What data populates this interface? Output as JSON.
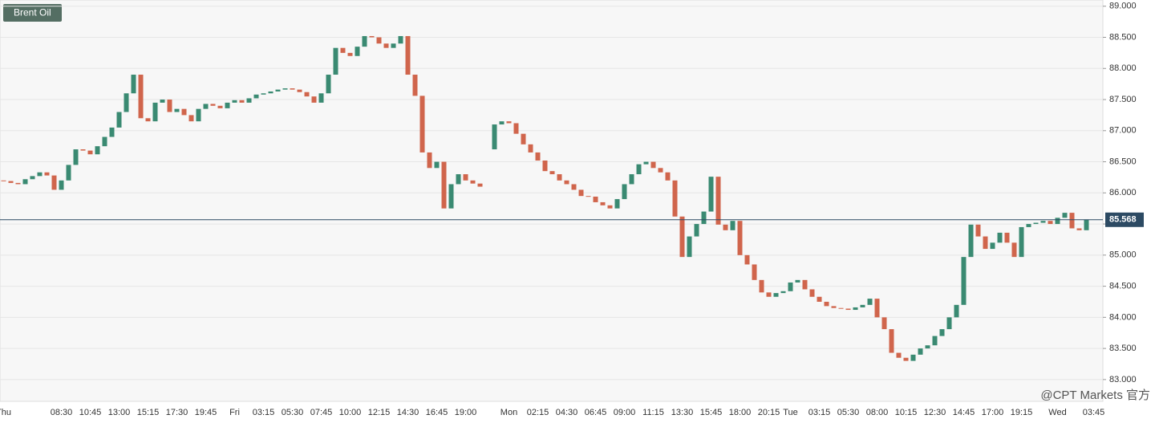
{
  "chart_data": {
    "type": "candlestick",
    "title": "Brent Oil",
    "watermark": "@CPT Markets 官方",
    "categories": [
      "Thu",
      null,
      null,
      null,
      null,
      null,
      null,
      null,
      "08:30",
      null,
      null,
      null,
      "10:45",
      null,
      null,
      null,
      "13:00",
      null,
      null,
      null,
      "15:15",
      null,
      null,
      null,
      "17:30",
      null,
      null,
      null,
      "19:45",
      null,
      null,
      null,
      "Fri",
      null,
      null,
      null,
      "03:15",
      null,
      null,
      null,
      "05:30",
      null,
      null,
      null,
      "07:45",
      null,
      null,
      null,
      "10:00",
      null,
      null,
      null,
      "12:15",
      null,
      null,
      null,
      "14:30",
      null,
      null,
      null,
      "16:45",
      null,
      null,
      null,
      "19:00",
      null,
      null,
      null,
      null,
      null,
      "Mon",
      null,
      null,
      null,
      "02:15",
      null,
      null,
      null,
      "04:30",
      null,
      null,
      null,
      "06:45",
      null,
      null,
      null,
      "09:00",
      null,
      null,
      null,
      "11:15",
      null,
      null,
      null,
      "13:30",
      null,
      null,
      null,
      "15:45",
      null,
      null,
      null,
      "18:00",
      null,
      null,
      null,
      "20:15",
      null,
      null,
      "Tue",
      null,
      null,
      null,
      "03:15",
      null,
      null,
      null,
      "05:30",
      null,
      null,
      null,
      "08:00",
      null,
      null,
      null,
      "10:15",
      null,
      null,
      null,
      "12:30",
      null,
      null,
      null,
      "14:45",
      null,
      null,
      null,
      "17:00",
      null,
      null,
      null,
      "19:15",
      null,
      null,
      null,
      null,
      "Wed",
      null,
      null,
      null,
      null,
      "03:45"
    ],
    "open": [
      86.2,
      86.19,
      86.16,
      86.14,
      86.22,
      86.27,
      86.33,
      86.28,
      86.05,
      86.2,
      86.45,
      86.7,
      86.68,
      86.62,
      86.75,
      86.9,
      87.05,
      87.3,
      87.6,
      87.9,
      87.2,
      87.15,
      87.45,
      87.5,
      87.3,
      87.35,
      87.25,
      87.15,
      87.35,
      87.43,
      87.4,
      87.36,
      87.45,
      87.49,
      87.45,
      87.52,
      87.58,
      87.6,
      87.63,
      87.66,
      87.68,
      87.66,
      87.62,
      87.55,
      87.45,
      87.6,
      87.9,
      88.33,
      88.25,
      88.2,
      88.35,
      88.52,
      88.5,
      88.4,
      88.33,
      88.4,
      88.52,
      87.9,
      87.56,
      86.65,
      86.4,
      86.5,
      85.75,
      86.14,
      86.3,
      86.2,
      86.15,
      null,
      86.7,
      87.1,
      87.15,
      87.12,
      86.95,
      86.78,
      86.65,
      86.52,
      86.35,
      86.3,
      86.2,
      86.14,
      86.05,
      85.95,
      85.94,
      85.85,
      85.8,
      85.75,
      85.9,
      86.14,
      86.3,
      86.46,
      86.5,
      86.4,
      86.33,
      86.2,
      85.62,
      84.97,
      85.3,
      85.5,
      85.7,
      86.26,
      85.49,
      85.4,
      85.55,
      85.0,
      84.85,
      84.6,
      84.4,
      84.33,
      84.39,
      84.42,
      84.56,
      84.6,
      84.45,
      84.33,
      84.25,
      84.18,
      84.15,
      84.14,
      84.12,
      84.16,
      84.2,
      84.3,
      84.0,
      83.81,
      83.43,
      83.35,
      83.3,
      83.4,
      83.5,
      83.55,
      83.7,
      83.81,
      84.0,
      84.2,
      84.97,
      85.49,
      85.3,
      85.1,
      85.2,
      85.36,
      85.2,
      84.97,
      85.45,
      85.5,
      85.52,
      85.55,
      85.5,
      85.6,
      85.68,
      85.43,
      85.4,
      null
    ],
    "close": [
      86.19,
      86.16,
      86.14,
      86.22,
      86.27,
      86.33,
      86.28,
      86.05,
      86.2,
      86.45,
      86.7,
      86.68,
      86.62,
      86.75,
      86.9,
      87.05,
      87.3,
      87.6,
      87.9,
      87.2,
      87.15,
      87.45,
      87.5,
      87.3,
      87.35,
      87.25,
      87.15,
      87.35,
      87.43,
      87.4,
      87.36,
      87.45,
      87.49,
      87.45,
      87.52,
      87.58,
      87.6,
      87.63,
      87.66,
      87.68,
      87.66,
      87.62,
      87.55,
      87.45,
      87.6,
      87.9,
      88.33,
      88.25,
      88.2,
      88.35,
      88.52,
      88.5,
      88.4,
      88.33,
      88.4,
      88.52,
      87.9,
      87.56,
      86.65,
      86.4,
      86.5,
      85.75,
      86.14,
      86.3,
      86.2,
      86.15,
      86.1,
      null,
      87.1,
      87.15,
      87.12,
      86.95,
      86.78,
      86.65,
      86.52,
      86.35,
      86.3,
      86.2,
      86.14,
      86.05,
      85.95,
      85.94,
      85.85,
      85.8,
      85.75,
      85.9,
      86.14,
      86.3,
      86.46,
      86.5,
      86.4,
      86.33,
      86.2,
      85.62,
      84.97,
      85.3,
      85.5,
      85.7,
      86.26,
      85.49,
      85.4,
      85.55,
      85.0,
      84.85,
      84.6,
      84.4,
      84.33,
      84.39,
      84.42,
      84.56,
      84.6,
      84.45,
      84.33,
      84.25,
      84.18,
      84.15,
      84.14,
      84.12,
      84.16,
      84.2,
      84.3,
      84.0,
      83.81,
      83.43,
      83.35,
      83.3,
      83.4,
      83.5,
      83.55,
      83.7,
      83.81,
      84.0,
      84.2,
      84.97,
      85.49,
      85.3,
      85.1,
      85.2,
      85.36,
      85.2,
      84.97,
      85.45,
      85.5,
      85.52,
      85.55,
      85.5,
      85.6,
      85.68,
      85.43,
      85.4,
      85.57,
      null
    ],
    "up_color": "#3a8a72",
    "down_color": "#d0654c",
    "last_price": 85.568,
    "last_price_color": "#2c4a63",
    "ylim": [
      82.65,
      89.1
    ],
    "yticks": [
      {
        "value": 83,
        "label": "83.000"
      },
      {
        "value": 83.5,
        "label": "83.500"
      },
      {
        "value": 84,
        "label": "84.000"
      },
      {
        "value": 84.5,
        "label": "84.500"
      },
      {
        "value": 85,
        "label": "85.000"
      },
      {
        "value": 85.5,
        "label": "85.500"
      },
      {
        "value": 86,
        "label": "86.000"
      },
      {
        "value": 86.5,
        "label": "86.500"
      },
      {
        "value": 87,
        "label": "87.000"
      },
      {
        "value": 87.5,
        "label": "87.500"
      },
      {
        "value": 88,
        "label": "88.000"
      },
      {
        "value": 88.5,
        "label": "88.500"
      },
      {
        "value": 89,
        "label": "89.000"
      }
    ],
    "grid": true
  }
}
